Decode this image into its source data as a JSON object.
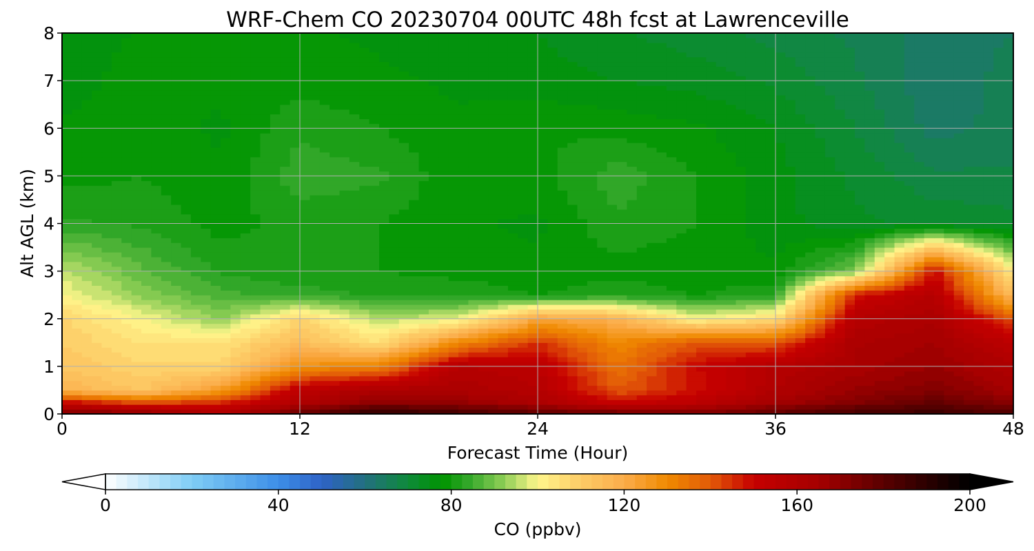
{
  "chart_data": {
    "type": "heatmap",
    "title": "WRF-Chem CO  20230704 00UTC 48h fcst at Lawrenceville",
    "xlabel": "Forecast Time (Hour)",
    "ylabel": "Alt AGL (km)",
    "xlim": [
      0,
      48
    ],
    "ylim": [
      0,
      8
    ],
    "x_ticks": [
      {
        "value": 0,
        "label": "0"
      },
      {
        "value": 12,
        "label": "12"
      },
      {
        "value": 24,
        "label": "24"
      },
      {
        "value": 36,
        "label": "36"
      },
      {
        "value": 48,
        "label": "48"
      }
    ],
    "y_ticks": [
      {
        "value": 0,
        "label": "0"
      },
      {
        "value": 1,
        "label": "1"
      },
      {
        "value": 2,
        "label": "2"
      },
      {
        "value": 3,
        "label": "3"
      },
      {
        "value": 4,
        "label": "4"
      },
      {
        "value": 5,
        "label": "5"
      },
      {
        "value": 6,
        "label": "6"
      },
      {
        "value": 7,
        "label": "7"
      },
      {
        "value": 8,
        "label": "8"
      }
    ],
    "grid": true,
    "colorbar": {
      "label": "CO  (ppbv)",
      "range": [
        0,
        200
      ],
      "extend": "both",
      "ticks": [
        {
          "value": 0,
          "label": "0"
        },
        {
          "value": 40,
          "label": "40"
        },
        {
          "value": 80,
          "label": "80"
        },
        {
          "value": 120,
          "label": "120"
        },
        {
          "value": 160,
          "label": "160"
        },
        {
          "value": 200,
          "label": "200"
        }
      ],
      "color_stops": [
        {
          "value": 0,
          "color": "#ffffff"
        },
        {
          "value": 20,
          "color": "#7fcdf5"
        },
        {
          "value": 40,
          "color": "#3d8ee8"
        },
        {
          "value": 50,
          "color": "#2e62c7"
        },
        {
          "value": 60,
          "color": "#22707f"
        },
        {
          "value": 70,
          "color": "#0e8a3a"
        },
        {
          "value": 78,
          "color": "#009400"
        },
        {
          "value": 84,
          "color": "#33a82a"
        },
        {
          "value": 92,
          "color": "#8ccd55"
        },
        {
          "value": 100,
          "color": "#fff68c"
        },
        {
          "value": 110,
          "color": "#fdcc66"
        },
        {
          "value": 120,
          "color": "#fbac4a"
        },
        {
          "value": 130,
          "color": "#f08a00"
        },
        {
          "value": 140,
          "color": "#e25a08"
        },
        {
          "value": 150,
          "color": "#c60000"
        },
        {
          "value": 165,
          "color": "#a50000"
        },
        {
          "value": 180,
          "color": "#5a0000"
        },
        {
          "value": 195,
          "color": "#140000"
        },
        {
          "value": 200,
          "color": "#000000"
        }
      ]
    },
    "hours": [
      0,
      4,
      8,
      12,
      16,
      20,
      24,
      28,
      32,
      36,
      40,
      44,
      48
    ],
    "altitudes_km": [
      0,
      0.25,
      0.5,
      1,
      1.5,
      2,
      2.5,
      3,
      4,
      5,
      6,
      7,
      8
    ],
    "co_ppbv": [
      [
        175,
        172,
        162,
        178,
        192,
        186,
        180,
        178,
        174,
        180,
        185,
        188,
        182
      ],
      [
        150,
        140,
        145,
        160,
        170,
        168,
        162,
        150,
        155,
        165,
        172,
        178,
        170
      ],
      [
        118,
        112,
        125,
        155,
        162,
        162,
        158,
        140,
        148,
        160,
        168,
        172,
        165
      ],
      [
        112,
        108,
        108,
        128,
        132,
        158,
        155,
        135,
        150,
        158,
        163,
        168,
        160
      ],
      [
        110,
        105,
        105,
        115,
        105,
        130,
        145,
        130,
        140,
        140,
        162,
        165,
        155
      ],
      [
        108,
        100,
        92,
        108,
        95,
        98,
        122,
        118,
        100,
        106,
        158,
        162,
        140
      ],
      [
        100,
        92,
        86,
        84,
        82,
        82,
        80,
        82,
        80,
        82,
        148,
        158,
        115
      ],
      [
        96,
        88,
        82,
        80,
        80,
        79,
        78,
        79,
        78,
        78,
        90,
        150,
        102
      ],
      [
        83,
        82,
        79,
        81,
        80,
        78,
        77,
        82,
        80,
        76,
        73,
        72,
        71
      ],
      [
        79,
        80,
        78,
        84,
        83,
        78,
        79,
        84,
        80,
        76,
        72,
        68,
        68
      ],
      [
        78,
        79,
        77,
        82,
        80,
        78,
        80,
        79,
        78,
        75,
        70,
        64,
        66
      ],
      [
        76,
        79,
        78,
        79,
        78,
        77,
        76,
        75,
        74,
        72,
        68,
        63,
        66
      ],
      [
        75,
        78,
        80,
        78,
        77,
        76,
        75,
        73,
        71,
        69,
        67,
        64,
        65
      ]
    ]
  }
}
